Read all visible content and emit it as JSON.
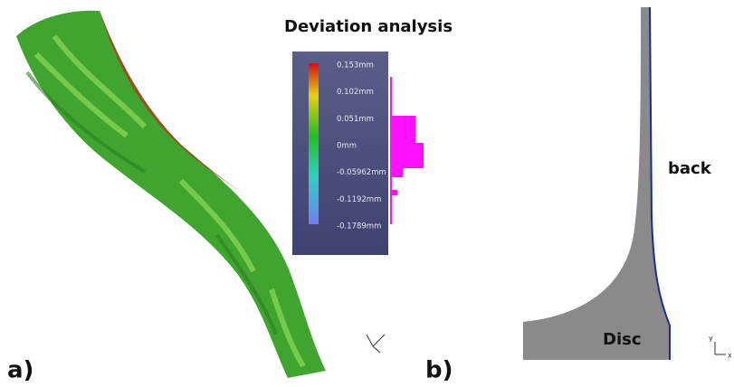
{
  "panel_a": {
    "label": "a)",
    "title": "Deviation analysis",
    "scale_labels": [
      "0.153mm",
      "0.102mm",
      "0.051mm",
      "0mm",
      "-0.05962mm",
      "-0.1192mm",
      "-0.1789mm"
    ]
  },
  "panel_b": {
    "label": "b)",
    "regions": [
      "back",
      "Disc"
    ],
    "axis_labels": [
      "y",
      "x"
    ]
  }
}
